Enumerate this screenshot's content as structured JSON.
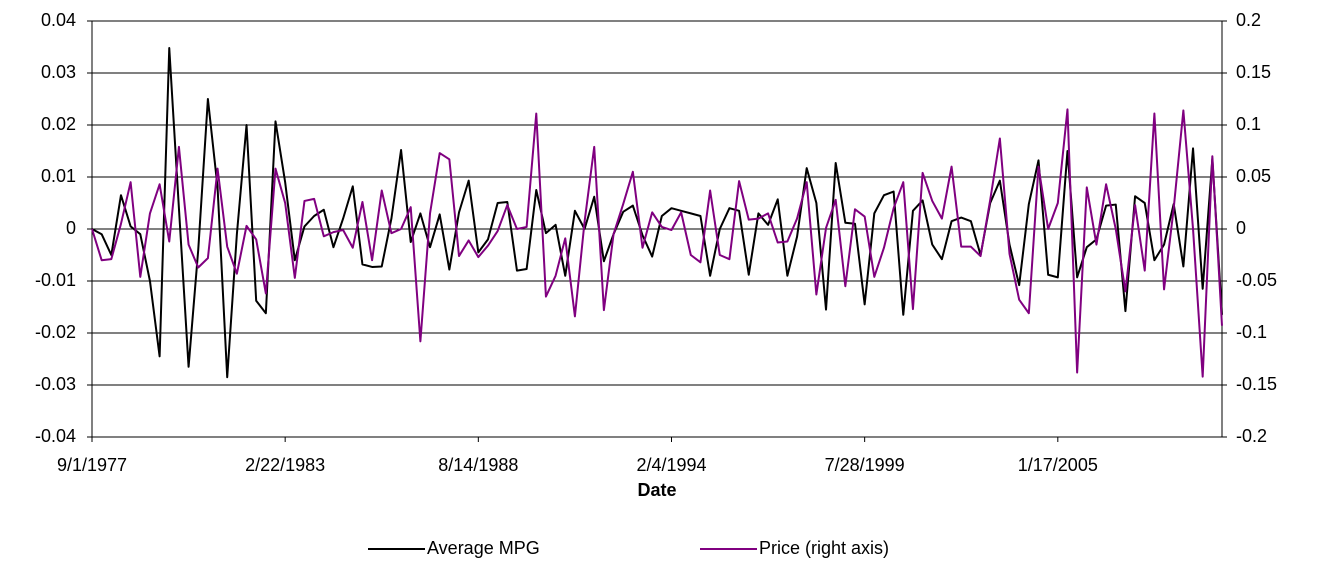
{
  "chart_data": {
    "type": "line",
    "x_label": "Date",
    "categories": [
      "9/1/1977",
      null,
      null,
      null,
      null,
      null,
      null,
      null,
      null,
      null,
      null,
      null,
      null,
      null,
      null,
      null,
      null,
      null,
      null,
      null,
      "2/22/1983",
      null,
      null,
      null,
      null,
      null,
      null,
      null,
      null,
      null,
      null,
      null,
      null,
      null,
      null,
      null,
      null,
      null,
      null,
      null,
      "8/14/1988",
      null,
      null,
      null,
      null,
      null,
      null,
      null,
      null,
      null,
      null,
      null,
      null,
      null,
      null,
      null,
      null,
      null,
      null,
      null,
      "2/4/1994",
      null,
      null,
      null,
      null,
      null,
      null,
      null,
      null,
      null,
      null,
      null,
      null,
      null,
      null,
      null,
      null,
      null,
      null,
      null,
      "7/28/1999",
      null,
      null,
      null,
      null,
      null,
      null,
      null,
      null,
      null,
      null,
      null,
      null,
      null,
      null,
      null,
      null,
      null,
      null,
      null,
      "1/17/2005",
      null,
      null,
      null,
      null,
      null,
      null,
      null,
      null,
      null,
      null,
      null,
      null,
      null,
      null,
      null,
      null,
      null
    ],
    "series": [
      {
        "name": "Average MPG",
        "color": "#000000",
        "axis": "y",
        "values": [
          0,
          -0.001,
          -0.005,
          0.0065,
          0.0005,
          -0.001,
          -0.01,
          -0.0245,
          0.0348,
          0.004,
          -0.0265,
          -0.004,
          0.025,
          0.008,
          -0.0285,
          -0.001,
          0.02,
          -0.0138,
          -0.0162,
          0.0207,
          0.009,
          -0.006,
          0.0005,
          0.0025,
          0.0037,
          -0.0035,
          0.002,
          0.0082,
          -0.0068,
          -0.0073,
          -0.0072,
          0.002,
          0.0152,
          -0.0025,
          0.003,
          -0.0035,
          0.0028,
          -0.0078,
          0.0032,
          0.0093,
          -0.0045,
          -0.002,
          0.005,
          0.0052,
          -0.008,
          -0.0077,
          0.0075,
          -0.0008,
          0.0008,
          -0.009,
          0.0035,
          0,
          0.0062,
          -0.0062,
          -0.001,
          0.0033,
          0.0045,
          -0.0012,
          -0.0053,
          0.0025,
          0.004,
          0.0035,
          0.003,
          0.0025,
          -0.009,
          0,
          0.004,
          0.0035,
          -0.0088,
          0.003,
          0.0008,
          0.0057,
          -0.009,
          -0.0015,
          0.0117,
          0.005,
          -0.0155,
          0.0127,
          0.0012,
          0.001,
          -0.0145,
          0.003,
          0.0065,
          0.0072,
          -0.0165,
          0.0035,
          0.0055,
          -0.003,
          -0.0058,
          0.0015,
          0.0022,
          0.0015,
          -0.005,
          0.005,
          0.0093,
          -0.003,
          -0.0108,
          0.0048,
          0.0132,
          -0.0088,
          -0.0093,
          0.015,
          -0.0093,
          -0.0035,
          -0.002,
          0.0045,
          0.0047,
          -0.0158,
          0.0063,
          0.005,
          -0.006,
          -0.003,
          0.0048,
          -0.0072,
          0.0155,
          -0.0115,
          0.0135,
          -0.0165
        ]
      },
      {
        "name": "Price (right axis)",
        "color": "#800080",
        "axis": "y2",
        "values": [
          0,
          -0.03,
          -0.029,
          0.005,
          0.045,
          -0.046,
          0.015,
          0.043,
          -0.012,
          0.079,
          -0.015,
          -0.037,
          -0.028,
          0.058,
          -0.017,
          -0.043,
          0.003,
          -0.01,
          -0.062,
          0.058,
          0.025,
          -0.047,
          0.027,
          0.029,
          -0.007,
          -0.003,
          -0.001,
          -0.018,
          0.026,
          -0.03,
          0.037,
          -0.004,
          0,
          0.021,
          -0.108,
          0.015,
          0.073,
          0.067,
          -0.026,
          -0.011,
          -0.027,
          -0.016,
          -0.002,
          0.023,
          0,
          0.002,
          0.111,
          -0.065,
          -0.045,
          -0.009,
          -0.084,
          0.007,
          0.079,
          -0.078,
          -0.005,
          0.024,
          0.055,
          -0.018,
          0.016,
          0.002,
          -0.001,
          0.016,
          -0.025,
          -0.032,
          0.037,
          -0.025,
          -0.029,
          0.046,
          0.009,
          0.01,
          0.015,
          -0.013,
          -0.012,
          0.01,
          0.045,
          -0.063,
          0.001,
          0.028,
          -0.055,
          0.019,
          0.012,
          -0.046,
          -0.018,
          0.02,
          0.045,
          -0.077,
          0.054,
          0.027,
          0.01,
          0.06,
          -0.017,
          -0.017,
          -0.026,
          0.028,
          0.087,
          -0.024,
          -0.068,
          -0.081,
          0.06,
          0,
          0.025,
          0.115,
          -0.138,
          0.04,
          -0.015,
          0.043,
          0,
          -0.06,
          0.023,
          -0.04,
          0.111,
          -0.058,
          0.02,
          0.114,
          0,
          -0.142,
          0.07,
          -0.093
        ]
      }
    ],
    "ylim": [
      -0.04,
      0.04
    ],
    "yticks": [
      -0.04,
      -0.03,
      -0.02,
      -0.01,
      0,
      0.01,
      0.02,
      0.03,
      0.04
    ],
    "y2lim": [
      -0.2,
      0.2
    ],
    "y2ticks": [
      -0.2,
      -0.15,
      -0.1,
      -0.05,
      0,
      0.05,
      0.1,
      0.15,
      0.2
    ],
    "grid": true,
    "legend": "bottom"
  }
}
